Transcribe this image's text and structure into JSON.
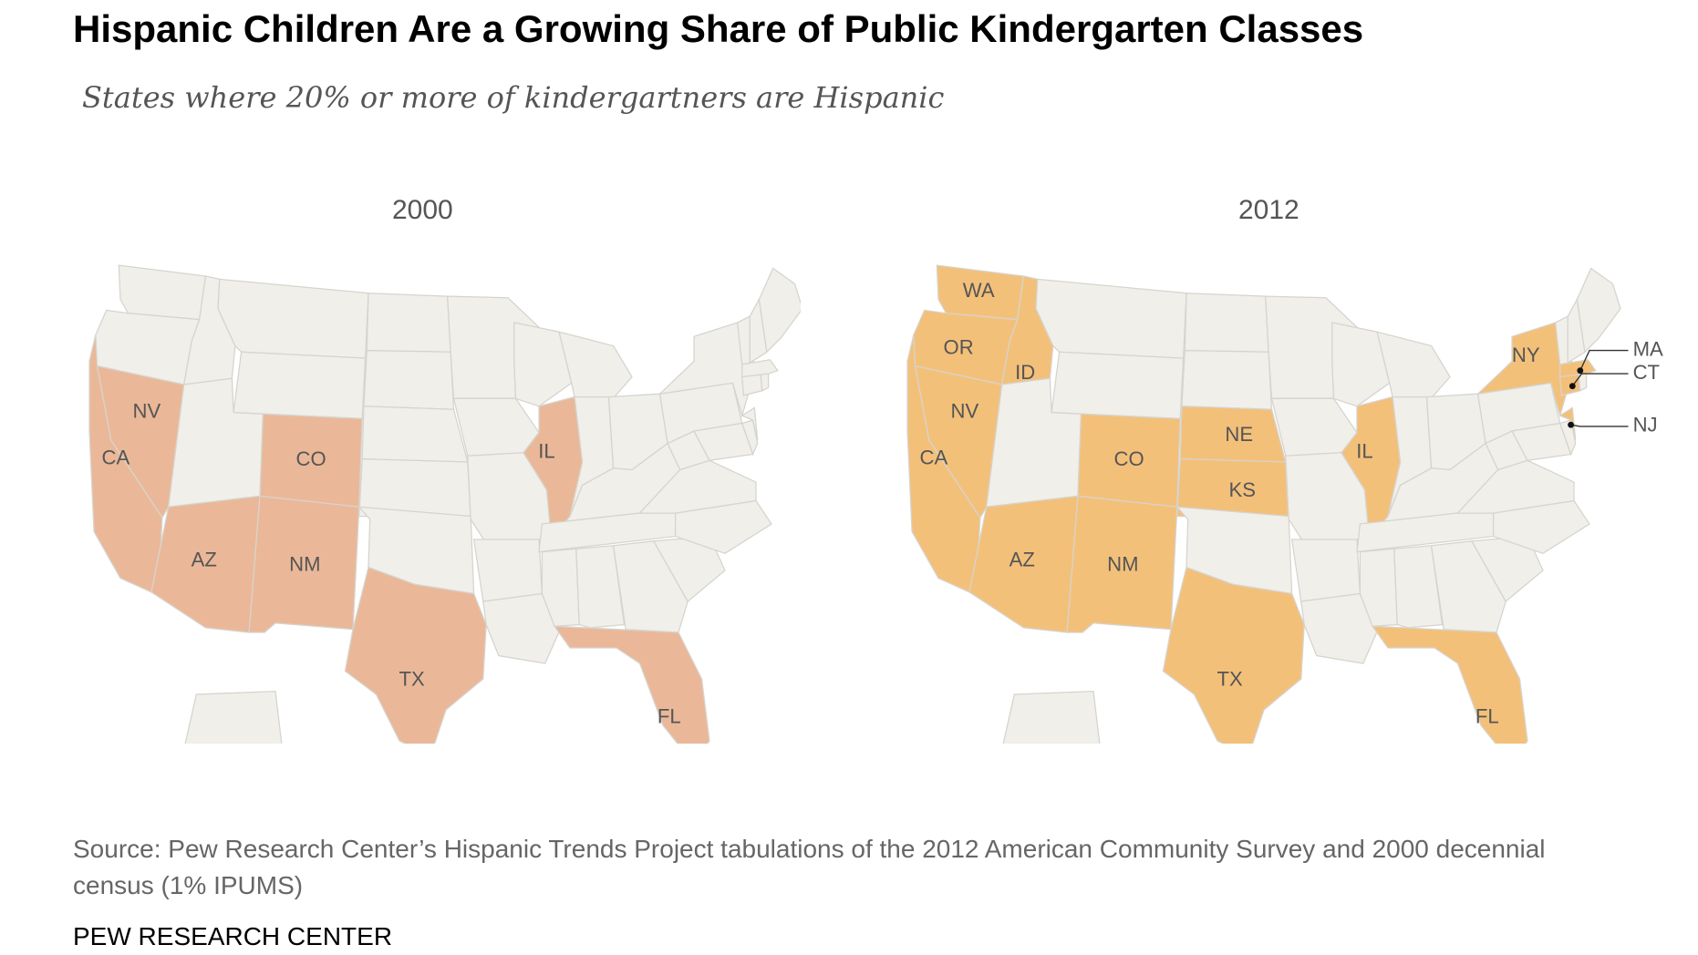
{
  "title": "Hispanic Children Are a Growing Share of Public Kindergarten Classes",
  "subtitle": "States where 20% or more of kindergartners are Hispanic",
  "source": "Source: Pew Research Center’s Hispanic Trends Project tabulations of the 2012 American Community Survey and 2000 decennial census (1% IPUMS)",
  "brand": "PEW RESEARCH CENTER",
  "colors": {
    "base": "#f0efea",
    "border": "#d6d4ce",
    "highlight_2000": "#eab898",
    "highlight_2012": "#f3c07a"
  },
  "maps": [
    {
      "year": "2000",
      "states": [
        "CA",
        "NV",
        "AZ",
        "NM",
        "CO",
        "TX",
        "IL",
        "FL"
      ]
    },
    {
      "year": "2012",
      "states": [
        "WA",
        "OR",
        "ID",
        "CA",
        "NV",
        "AZ",
        "NM",
        "CO",
        "NE",
        "KS",
        "TX",
        "IL",
        "FL",
        "NY",
        "MA",
        "CT",
        "NJ"
      ]
    }
  ],
  "callouts": [
    "MA",
    "CT",
    "NJ"
  ]
}
